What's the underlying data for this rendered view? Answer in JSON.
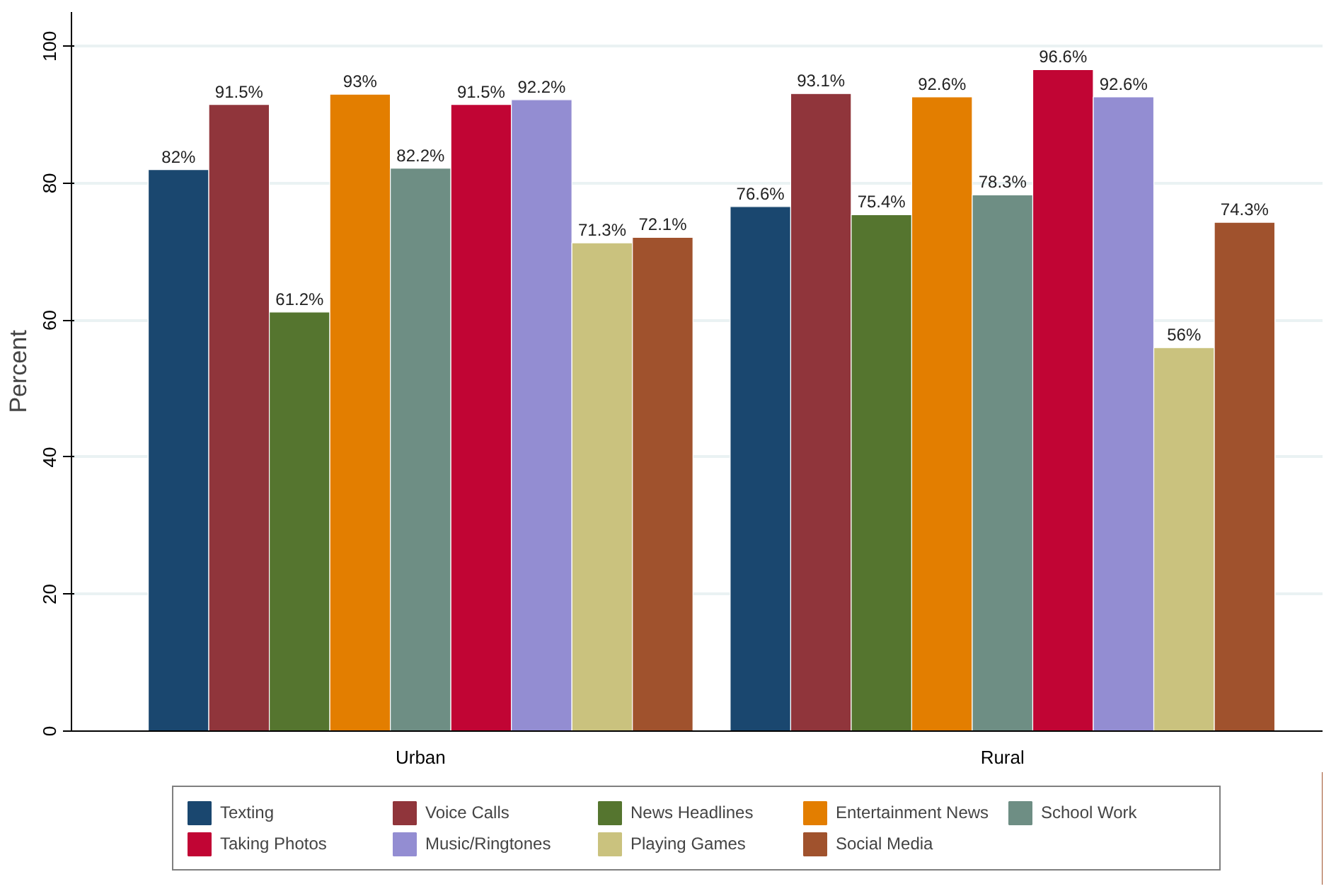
{
  "chart_data": {
    "type": "bar",
    "ylabel": "Percent",
    "categories": [
      "Urban",
      "Rural"
    ],
    "ylim": [
      0,
      105
    ],
    "yticks": [
      0,
      20,
      40,
      60,
      80,
      100
    ],
    "grid": "y",
    "legend": "bottom",
    "series": [
      {
        "name": "Texting",
        "color": "#1a476f",
        "values": [
          82,
          76.6
        ],
        "value_labels": [
          "82%",
          "76.6%"
        ]
      },
      {
        "name": "Voice Calls",
        "color": "#90353b",
        "values": [
          91.5,
          93.1
        ],
        "value_labels": [
          "91.5%",
          "93.1%"
        ]
      },
      {
        "name": "News Headlines",
        "color": "#55752f",
        "values": [
          61.2,
          75.4
        ],
        "value_labels": [
          "61.2%",
          "75.4%"
        ]
      },
      {
        "name": "Entertainment News",
        "color": "#e37e00",
        "values": [
          93,
          92.6
        ],
        "value_labels": [
          "93%",
          "92.6%"
        ]
      },
      {
        "name": "School Work",
        "color": "#6e8e84",
        "values": [
          82.2,
          78.3
        ],
        "value_labels": [
          "82.2%",
          "78.3%"
        ]
      },
      {
        "name": "Taking Photos",
        "color": "#c10534",
        "values": [
          91.5,
          96.6
        ],
        "value_labels": [
          "91.5%",
          "96.6%"
        ]
      },
      {
        "name": "Music/Ringtones",
        "color": "#938dd2",
        "values": [
          92.2,
          92.6
        ],
        "value_labels": [
          "92.2%",
          "92.6%"
        ]
      },
      {
        "name": "Playing Games",
        "color": "#cac27e",
        "values": [
          71.3,
          56
        ],
        "value_labels": [
          "71.3%",
          "56%"
        ]
      },
      {
        "name": "Social Media",
        "color": "#a0522d",
        "values": [
          72.1,
          74.3
        ],
        "value_labels": [
          "72.1%",
          "74.3%"
        ]
      }
    ]
  }
}
